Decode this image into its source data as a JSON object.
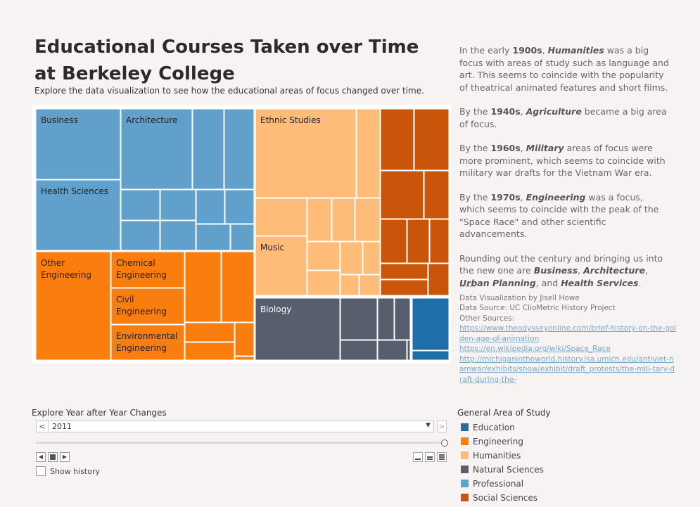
{
  "header": {
    "title": "Educational Courses Taken over Time at Berkeley College",
    "subtitle": "Explore the data visualization to see how the educational areas of focus changed over time."
  },
  "colors": {
    "Education": "#1f6ea8",
    "Engineering": "#f97e0f",
    "Humanities": "#ffbb78",
    "Natural Sciences": "#575e6e",
    "Professional": "#62a0cc",
    "Social Sciences": "#c9550b"
  },
  "story": [
    {
      "parts": [
        [
          "t",
          "In the early "
        ],
        [
          "b",
          "1900s"
        ],
        [
          "t",
          ", "
        ],
        [
          "bi",
          "Humanities"
        ],
        [
          "t",
          " was a big focus with areas of study such as language and art. This seems to coincide with the popularity of theatrical animated features and short films."
        ]
      ]
    },
    {
      "parts": [
        [
          "t",
          "By the "
        ],
        [
          "b",
          "1940s"
        ],
        [
          "t",
          ", "
        ],
        [
          "bi",
          "Agriculture"
        ],
        [
          "t",
          " became a big area of focus."
        ]
      ]
    },
    {
      "parts": [
        [
          "t",
          "By the "
        ],
        [
          "b",
          "1960s"
        ],
        [
          "t",
          ", "
        ],
        [
          "bi",
          "Military"
        ],
        [
          "t",
          " areas of focus were more prominent, which seems to coincide with military war drafts for the Vietnam War era."
        ]
      ]
    },
    {
      "parts": [
        [
          "t",
          "By the "
        ],
        [
          "b",
          "1970s"
        ],
        [
          "t",
          ", "
        ],
        [
          "bi",
          "Engineering"
        ],
        [
          "t",
          " was a focus, which seems to coincide with the peak of the \"Space Race\" and other scientific advancements."
        ]
      ]
    },
    {
      "parts": [
        [
          "t",
          "Rounding out the century and bringing us into the new one are "
        ],
        [
          "bi",
          "Business"
        ],
        [
          "t",
          ", "
        ],
        [
          "bi",
          "Architecture"
        ],
        [
          "t",
          ", "
        ],
        [
          "bi",
          "Urban Planning"
        ],
        [
          "t",
          ", and "
        ],
        [
          "bi",
          "Health Services"
        ],
        [
          "t",
          "."
        ]
      ]
    }
  ],
  "credits": {
    "dash": "------",
    "by": "Data Visualization by Jisell Howe",
    "source": "Data Source: UC ClioMetric History Project",
    "other_label": "Other Sources:",
    "links": [
      "https://www.theodysseyonline.com/brief-history-on-the-golden-age-of-animation",
      "https://en.wikipedia.org/wiki/Space_Race",
      "http://michiganintheworld.history.lsa.umich.edu/antiviet-namwar/exhibits/show/exhibit/draft_protests/the-mili-tary-draft-during-the-"
    ]
  },
  "treemap_labels": {
    "business": "Business",
    "architecture": "Architecture",
    "health": "Health Sciences",
    "ethnic": "Ethnic Studies",
    "music": "Music",
    "other_eng_1": "Other",
    "other_eng_2": "Engineering",
    "chem_1": "Chemical",
    "chem_2": "Engineering",
    "civil_1": "Civil",
    "civil_2": "Engineering",
    "env_1": "Environmental",
    "env_2": "Engineering",
    "biology": "Biology"
  },
  "controls": {
    "slider_title": "Explore Year after Year Changes",
    "year": "2011",
    "prev": "<",
    "next": ">",
    "dropdown": "▼",
    "show_history": "Show history"
  },
  "legend": {
    "title": "General Area of Study",
    "items": [
      "Education",
      "Engineering",
      "Humanities",
      "Natural Sciences",
      "Professional",
      "Social Sciences"
    ]
  }
}
